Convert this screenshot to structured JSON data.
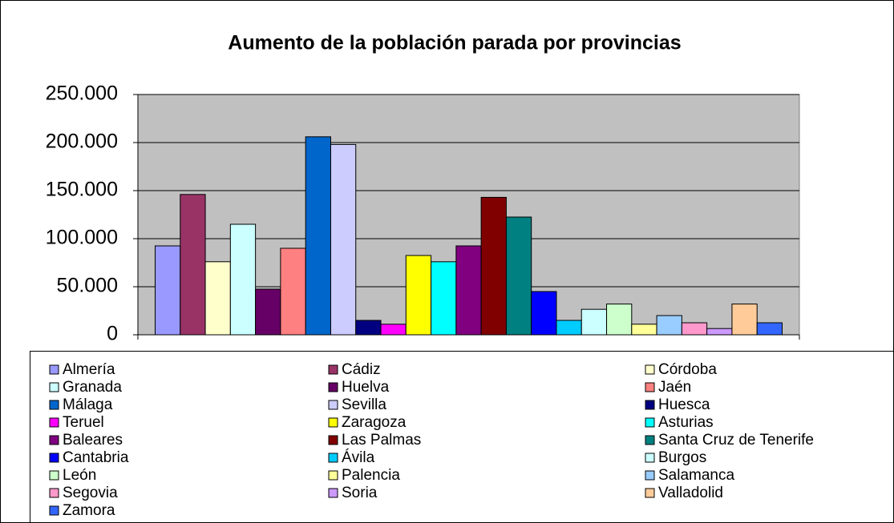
{
  "chart_data": {
    "type": "bar",
    "title": "Aumento de la población parada por provincias",
    "categories": [
      "Almería",
      "Cádiz",
      "Córdoba",
      "Granada",
      "Huelva",
      "Jaén",
      "Málaga",
      "Sevilla",
      "Huesca",
      "Teruel",
      "Zaragoza",
      "Asturias",
      "Baleares",
      "Las Palmas",
      "Santa Cruz de Tenerife",
      "Cantabria",
      "Ávila",
      "Burgos",
      "León",
      "Palencia",
      "Salamanca",
      "Segovia",
      "Soria",
      "Valladolid",
      "Zamora"
    ],
    "values": [
      92500,
      146000,
      76000,
      115000,
      47500,
      90000,
      206000,
      198000,
      15000,
      11000,
      82500,
      76000,
      92500,
      143000,
      122500,
      45000,
      15000,
      26500,
      32000,
      11000,
      20000,
      12500,
      6500,
      32000,
      12500
    ],
    "colors": [
      "#9999ff",
      "#993366",
      "#ffffcc",
      "#ccffff",
      "#660066",
      "#ff8080",
      "#0066cc",
      "#ccccff",
      "#000080",
      "#ff00ff",
      "#ffff00",
      "#00ffff",
      "#800080",
      "#800000",
      "#008080",
      "#0000ff",
      "#00ccff",
      "#ccffff",
      "#ccffcc",
      "#ffff99",
      "#99ccff",
      "#ff99cc",
      "#cc99ff",
      "#ffcc99",
      "#3366ff"
    ],
    "ylim": [
      0,
      250000
    ],
    "yticks": [
      0,
      {
        "value": 50000,
        "label": "50.000"
      },
      {
        "value": 100000,
        "label": "100.000"
      },
      {
        "value": 150000,
        "label": "150.000"
      },
      {
        "value": 200000,
        "label": "200.000"
      },
      {
        "value": 250000,
        "label": "250.000"
      }
    ],
    "grid": true,
    "legend": "bottom"
  }
}
